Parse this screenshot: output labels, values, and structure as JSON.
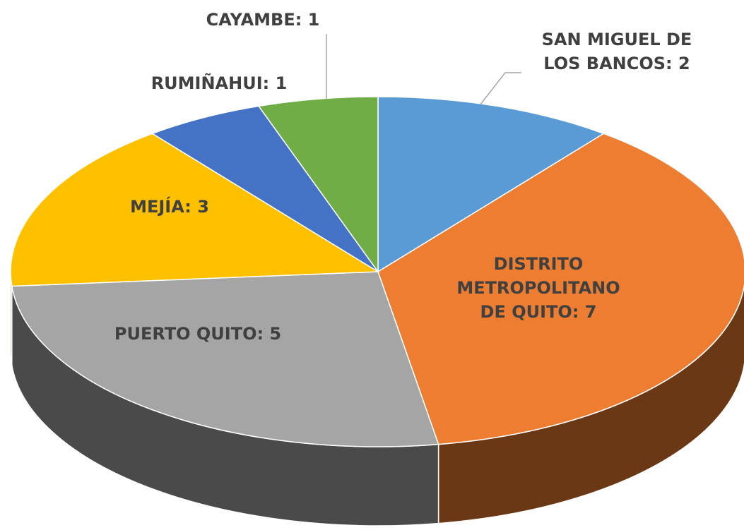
{
  "chart_data": {
    "type": "pie3d",
    "values": [
      2,
      7,
      5,
      3,
      1,
      1
    ],
    "value_labels": [
      "SAN MIGUEL DE LOS BANCOS: 2",
      "DISTRITO METROPOLITANO DE QUITO: 7",
      "PUERTO QUITO: 5",
      "MEJÍA: 3",
      "RUMIÑAHUI: 1",
      "CAYAMBE: 1"
    ],
    "colors": [
      "#5b9bd5",
      "#ed7d31",
      "#a5a5a5",
      "#ffc000",
      "#4472c4",
      "#70ad47"
    ]
  }
}
